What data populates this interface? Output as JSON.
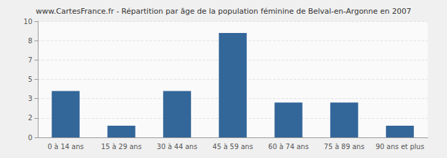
{
  "chart_data": {
    "type": "bar",
    "title": "www.CartesFrance.fr - Répartition par âge de la population féminine de Belval-en-Argonne en 2007",
    "categories": [
      "0 à 14 ans",
      "15 à 29 ans",
      "30 à 44 ans",
      "45 à 59 ans",
      "60 à 74 ans",
      "75 à 89 ans",
      "90 ans et plus"
    ],
    "values": [
      4,
      1,
      4,
      9,
      3,
      3,
      1
    ],
    "color": "#336699",
    "ylim": [
      0,
      10
    ],
    "yticks": [
      0,
      {
        "value": 1.6667,
        "label": "2"
      },
      {
        "value": 3.3333,
        "label": "3"
      },
      5,
      {
        "value": 6.6667,
        "label": "7"
      },
      {
        "value": 8.3333,
        "label": "8"
      },
      10
    ],
    "grid": true
  }
}
